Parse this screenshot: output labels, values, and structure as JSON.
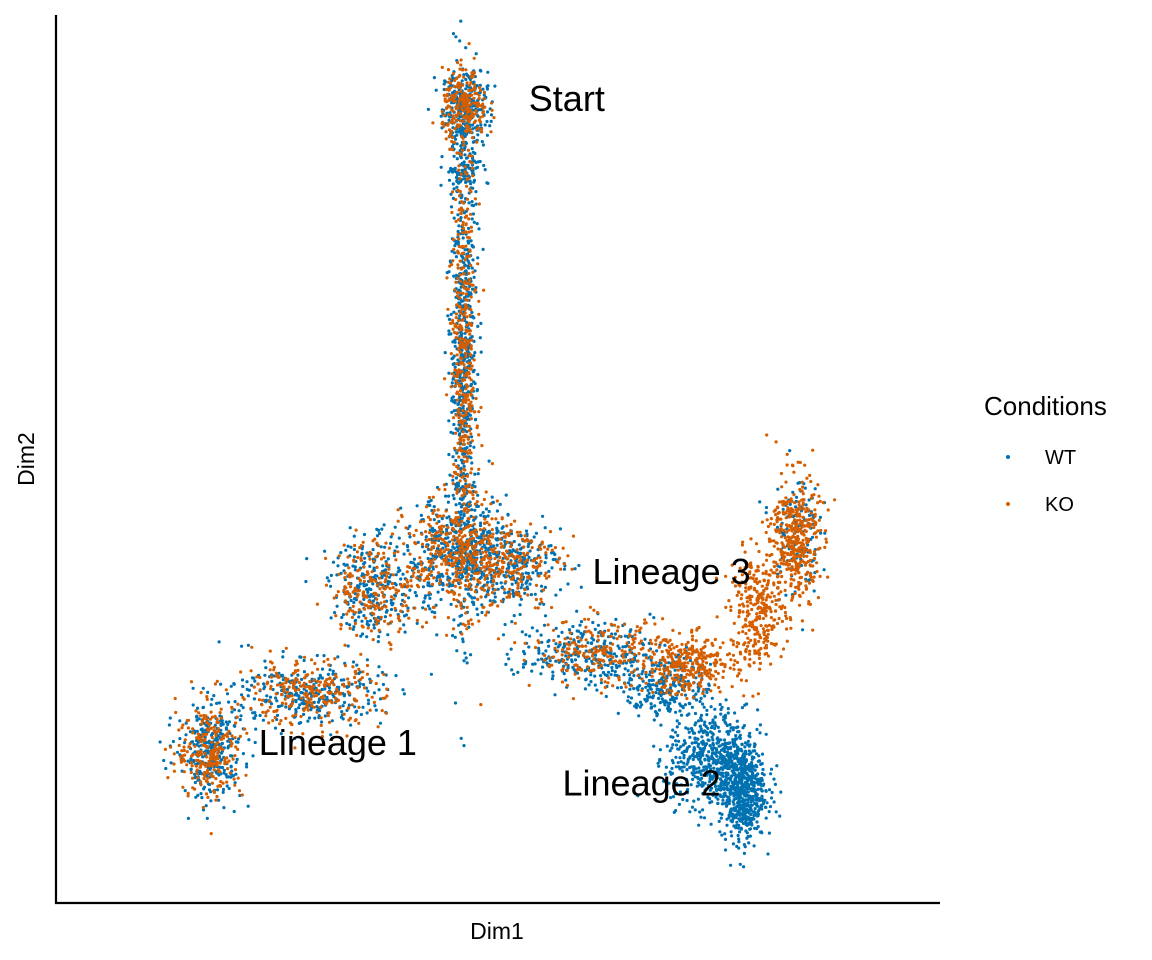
{
  "chart_data": {
    "type": "scatter",
    "title": "",
    "xlabel": "Dim1",
    "ylabel": "Dim2",
    "xlim": [
      0,
      100
    ],
    "ylim": [
      0,
      100
    ],
    "grid": false,
    "ticks": false,
    "legend": {
      "title": "Conditions",
      "position": "right",
      "entries": [
        {
          "label": "WT",
          "color": "#0072B2"
        },
        {
          "label": "KO",
          "color": "#D55E00"
        }
      ]
    },
    "annotations": [
      {
        "text": "Start",
        "x": 54.5,
        "y": 92.5
      },
      {
        "text": "Lineage 1",
        "x": 18.5,
        "y": 13.5
      },
      {
        "text": "Lineage 2",
        "x": 59,
        "y": 8.5
      },
      {
        "text": "Lineage 3",
        "x": 63,
        "y": 34.5
      }
    ],
    "series": [
      {
        "name": "WT",
        "color": "#0072B2",
        "clusters": [
          {
            "x": 46,
            "y": 93,
            "sx": 1.5,
            "sy": 2.2,
            "n": 300
          },
          {
            "x": 45.8,
            "y": 85.5,
            "sx": 1.2,
            "sy": 1.6,
            "n": 90
          },
          {
            "x": 45.8,
            "y": 62,
            "sx": 0.9,
            "sy": 14,
            "n": 650
          },
          {
            "x": 45,
            "y": 38,
            "sx": 3.5,
            "sy": 3.5,
            "n": 420
          },
          {
            "x": 34,
            "y": 34,
            "sx": 3,
            "sy": 3,
            "n": 250
          },
          {
            "x": 52,
            "y": 37,
            "sx": 3.5,
            "sy": 2.5,
            "n": 250
          },
          {
            "x": 25,
            "y": 21,
            "sx": 5,
            "sy": 2,
            "n": 300
          },
          {
            "x": 12,
            "y": 14,
            "sx": 2.2,
            "sy": 3,
            "n": 300
          },
          {
            "x": 62,
            "y": 26,
            "sx": 4.5,
            "sy": 2,
            "n": 280
          },
          {
            "x": 73,
            "y": 22,
            "sx": 3,
            "sy": 2,
            "n": 260
          },
          {
            "x": 79,
            "y": 13,
            "sx": 3,
            "sy": 3,
            "n": 550
          },
          {
            "x": 83,
            "y": 9,
            "sx": 1.5,
            "sy": 3,
            "n": 600
          },
          {
            "x": 90,
            "y": 41,
            "sx": 1.6,
            "sy": 4,
            "n": 120
          }
        ]
      },
      {
        "name": "KO",
        "color": "#D55E00",
        "clusters": [
          {
            "x": 46,
            "y": 93,
            "sx": 1.5,
            "sy": 2.2,
            "n": 220
          },
          {
            "x": 45.8,
            "y": 62,
            "sx": 0.9,
            "sy": 14,
            "n": 450
          },
          {
            "x": 45,
            "y": 38,
            "sx": 3.5,
            "sy": 3.5,
            "n": 350
          },
          {
            "x": 34,
            "y": 34,
            "sx": 3,
            "sy": 3,
            "n": 220
          },
          {
            "x": 52,
            "y": 37,
            "sx": 3.5,
            "sy": 2.5,
            "n": 200
          },
          {
            "x": 25,
            "y": 21,
            "sx": 5,
            "sy": 2,
            "n": 260
          },
          {
            "x": 12,
            "y": 14,
            "sx": 2.2,
            "sy": 3,
            "n": 240
          },
          {
            "x": 64,
            "y": 26,
            "sx": 4.5,
            "sy": 2,
            "n": 220
          },
          {
            "x": 76,
            "y": 24.5,
            "sx": 3,
            "sy": 1.8,
            "n": 300
          },
          {
            "x": 85,
            "y": 31,
            "sx": 1.8,
            "sy": 3.5,
            "n": 300
          },
          {
            "x": 90,
            "y": 40,
            "sx": 1.6,
            "sy": 4,
            "n": 420
          }
        ]
      }
    ]
  }
}
